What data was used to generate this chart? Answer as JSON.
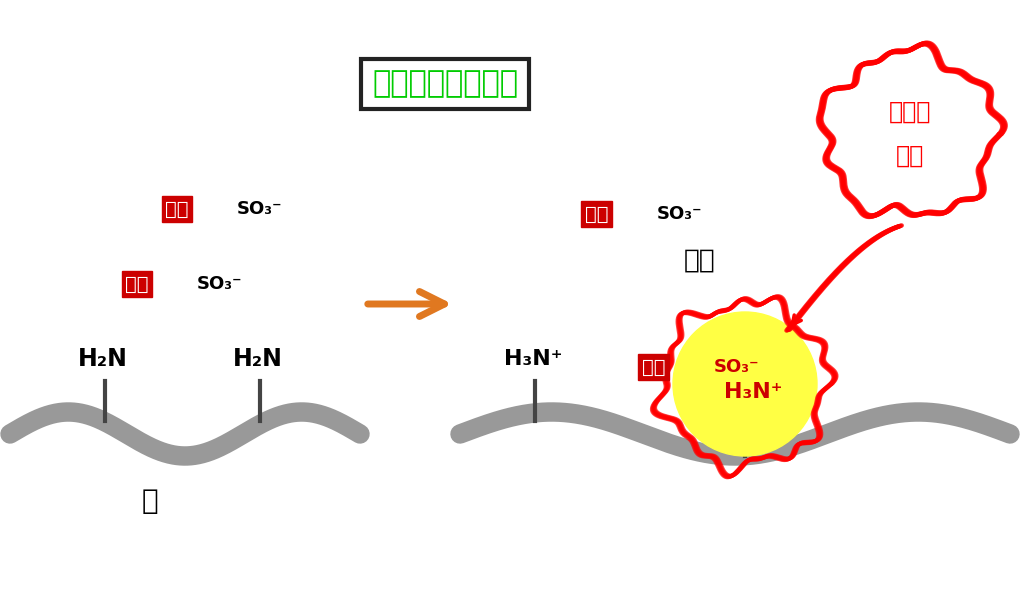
{
  "bg_color": "#ffffff",
  "title_text": "酸性・高温条件下",
  "title_color": "#00cc00",
  "title_border_color": "#222222",
  "ion_text1": "イオン",
  "ion_text2": "結合",
  "ion_circle_color": "#ff0000",
  "senzen_text": "染着",
  "nuno_text": "布",
  "dye_kanji": "染料",
  "so3_text": "SO₃⁻",
  "dye_bg_color": "#cc0000",
  "dye_text_color": "#ffffff",
  "so3_black": "#000000",
  "so3_red": "#cc0000",
  "so3_yellow_bg": "#ffff44",
  "arrow_color": "#e07820",
  "fabric_color": "#999999",
  "h2n_text": "H₂N",
  "h3n_plus_text": "H₃N⁺",
  "yellow_color": "#ffff44",
  "red_color": "#ff0000",
  "stem_color": "#444444"
}
